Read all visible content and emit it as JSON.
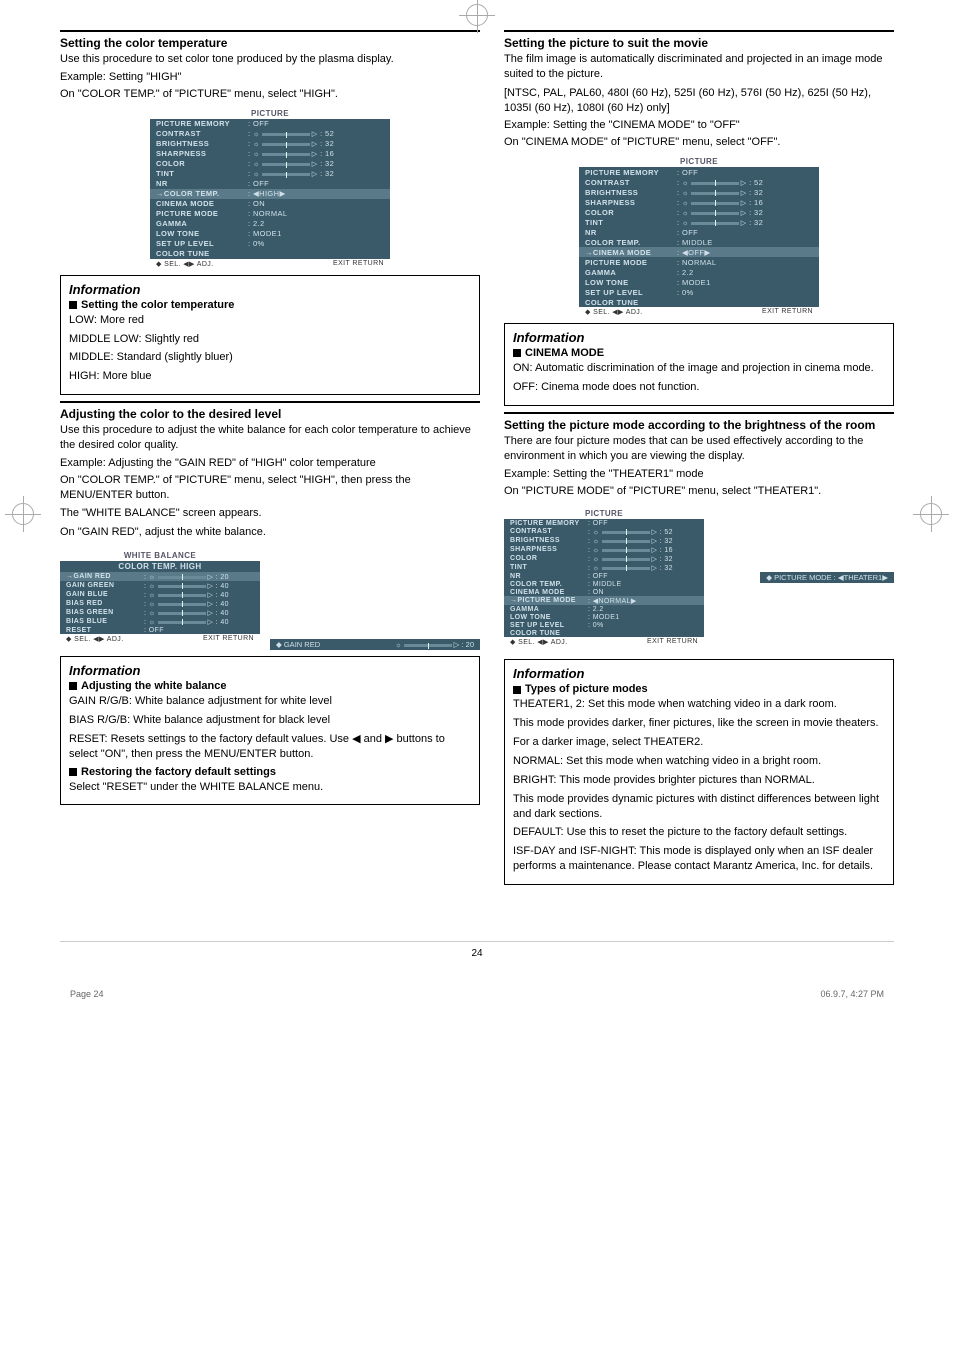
{
  "left": {
    "s1": {
      "title": "Setting the color temperature",
      "body": "Use this procedure to set color tone produced by the plasma display.",
      "example": "Example: Setting \"HIGH\"",
      "instr": "On \"COLOR TEMP.\" of \"PICTURE\" menu, select \"HIGH\"."
    },
    "menu1": {
      "title": "PICTURE",
      "rows": [
        {
          "l": "PICTURE MEMORY",
          "v": ": OFF",
          "t": "text"
        },
        {
          "l": "CONTRAST",
          "v": "52",
          "t": "slider"
        },
        {
          "l": "BRIGHTNESS",
          "v": "32",
          "t": "slider"
        },
        {
          "l": "SHARPNESS",
          "v": "16",
          "t": "slider"
        },
        {
          "l": "COLOR",
          "v": "32",
          "t": "slider"
        },
        {
          "l": "TINT",
          "v": "32",
          "t": "slider"
        },
        {
          "l": "NR",
          "v": ": OFF",
          "t": "text"
        },
        {
          "l": "COLOR TEMP.",
          "v": ": ◀HIGH▶",
          "t": "text",
          "sel": true,
          "hl": true
        },
        {
          "l": "CINEMA MODE",
          "v": ": ON",
          "t": "text"
        },
        {
          "l": "PICTURE MODE",
          "v": ": NORMAL",
          "t": "text"
        },
        {
          "l": "GAMMA",
          "v": ": 2.2",
          "t": "text"
        },
        {
          "l": "LOW TONE",
          "v": ": MODE1",
          "t": "text"
        },
        {
          "l": "SET UP LEVEL",
          "v": ": 0%",
          "t": "text"
        },
        {
          "l": "COLOR TUNE",
          "v": "",
          "t": "text"
        }
      ],
      "footer": {
        "l": "◆ SEL.    ◀▶ ADJ.",
        "r": "EXIT RETURN"
      }
    },
    "info1": {
      "title": "Information",
      "sub": "Setting the color temperature",
      "l1": "LOW: More red",
      "l2": "MIDDLE LOW: Slightly red",
      "l3": "MIDDLE: Standard (slightly bluer)",
      "l4": "HIGH: More blue"
    },
    "s2": {
      "title": "Adjusting the color to the desired level",
      "body": "Use this procedure to adjust the white balance for each color temperature to achieve the desired color quality.",
      "example": "Example: Adjusting the \"GAIN RED\" of \"HIGH\" color temperature",
      "i1": "On \"COLOR TEMP.\" of \"PICTURE\" menu, select \"HIGH\", then press the  MENU/ENTER button.",
      "i2": "The \"WHITE BALANCE\" screen appears.",
      "i3": "On \"GAIN RED\", adjust the white balance."
    },
    "menu2": {
      "title1": "WHITE BALANCE",
      "title2": "COLOR TEMP. HIGH",
      "rows": [
        {
          "l": "GAIN RED",
          "v": "20",
          "sel": true,
          "hl": true
        },
        {
          "l": "GAIN GREEN",
          "v": "40"
        },
        {
          "l": "GAIN BLUE",
          "v": "40"
        },
        {
          "l": "BIAS RED",
          "v": "40"
        },
        {
          "l": "BIAS GREEN",
          "v": "40"
        },
        {
          "l": "BIAS BLUE",
          "v": "40"
        },
        {
          "l": "RESET",
          "v": ": OFF",
          "t": "text"
        }
      ],
      "footer": {
        "l": "◆ SEL.    ◀▶ ADJ.",
        "r": "EXIT RETURN"
      },
      "strip": {
        "l": "◆ GAIN RED",
        "r": "▷ : 20"
      }
    },
    "info2": {
      "title": "Information",
      "sub1": "Adjusting the white balance",
      "l1": "GAIN R/G/B: White balance adjustment for white level",
      "l2": "BIAS R/G/B: White balance adjustment for black level",
      "l3": "RESET: Resets settings to the factory default values. Use  ◀ and ▶ buttons to select \"ON\", then press the MENU/ENTER button.",
      "sub2": "Restoring the factory default settings",
      "l4": "Select \"RESET\" under the WHITE BALANCE menu."
    }
  },
  "right": {
    "s1": {
      "title": "Setting the picture to suit the movie",
      "body": "The film image is automatically discriminated and projected in an image mode suited to the picture.",
      "note": "[NTSC, PAL, PAL60, 480I (60 Hz), 525I (60 Hz), 576I (50 Hz), 625I (50 Hz), 1035I (60 Hz), 1080I (60 Hz) only]",
      "example": "Example: Setting the \"CINEMA MODE\" to \"OFF\"",
      "instr": "On \"CINEMA MODE\" of \"PICTURE\" menu, select \"OFF\"."
    },
    "menu1": {
      "title": "PICTURE",
      "rows": [
        {
          "l": "PICTURE MEMORY",
          "v": ": OFF",
          "t": "text"
        },
        {
          "l": "CONTRAST",
          "v": "52",
          "t": "slider"
        },
        {
          "l": "BRIGHTNESS",
          "v": "32",
          "t": "slider"
        },
        {
          "l": "SHARPNESS",
          "v": "16",
          "t": "slider"
        },
        {
          "l": "COLOR",
          "v": "32",
          "t": "slider"
        },
        {
          "l": "TINT",
          "v": "32",
          "t": "slider"
        },
        {
          "l": "NR",
          "v": ": OFF",
          "t": "text"
        },
        {
          "l": "COLOR TEMP.",
          "v": ": MIDDLE",
          "t": "text"
        },
        {
          "l": "CINEMA MODE",
          "v": ": ◀OFF▶",
          "t": "text",
          "sel": true,
          "hl": true
        },
        {
          "l": "PICTURE MODE",
          "v": ": NORMAL",
          "t": "text"
        },
        {
          "l": "GAMMA",
          "v": ": 2.2",
          "t": "text"
        },
        {
          "l": "LOW TONE",
          "v": ": MODE1",
          "t": "text"
        },
        {
          "l": "SET UP LEVEL",
          "v": ": 0%",
          "t": "text"
        },
        {
          "l": "COLOR TUNE",
          "v": "",
          "t": "text"
        }
      ],
      "footer": {
        "l": "◆ SEL.    ◀▶ ADJ.",
        "r": "EXIT RETURN"
      }
    },
    "info1": {
      "title": "Information",
      "sub": "CINEMA MODE",
      "l1": "ON: Automatic discrimination of the image and projection in cinema mode.",
      "l2": "OFF: Cinema mode does not function."
    },
    "s2": {
      "title": "Setting the picture mode according to the brightness of the room",
      "body": "There are four picture modes that can be used effectively according to the environment in which you are viewing the display.",
      "example": "Example: Setting the \"THEATER1\" mode",
      "instr": "On \"PICTURE MODE\" of \"PICTURE\" menu, select \"THEATER1\"."
    },
    "menu2": {
      "title": "PICTURE",
      "rows": [
        {
          "l": "PICTURE MEMORY",
          "v": ": OFF",
          "t": "text"
        },
        {
          "l": "CONTRAST",
          "v": "52",
          "t": "slider"
        },
        {
          "l": "BRIGHTNESS",
          "v": "32",
          "t": "slider"
        },
        {
          "l": "SHARPNESS",
          "v": "16",
          "t": "slider"
        },
        {
          "l": "COLOR",
          "v": "32",
          "t": "slider"
        },
        {
          "l": "TINT",
          "v": "32",
          "t": "slider"
        },
        {
          "l": "NR",
          "v": ": OFF",
          "t": "text"
        },
        {
          "l": "COLOR TEMP.",
          "v": ": MIDDLE",
          "t": "text"
        },
        {
          "l": "CINEMA MODE",
          "v": ": ON",
          "t": "text"
        },
        {
          "l": "PICTURE MODE",
          "v": ": ◀NORMAL▶",
          "t": "text",
          "sel": true,
          "hl": true
        },
        {
          "l": "GAMMA",
          "v": ": 2.2",
          "t": "text"
        },
        {
          "l": "LOW TONE",
          "v": ": MODE1",
          "t": "text"
        },
        {
          "l": "SET UP LEVEL",
          "v": ": 0%",
          "t": "text"
        },
        {
          "l": "COLOR TUNE",
          "v": "",
          "t": "text"
        }
      ],
      "footer": {
        "l": "◆ SEL.    ◀▶ ADJ.",
        "r": "EXIT RETURN"
      },
      "strip": "◆ PICTURE MODE   : ◀THEATER1▶"
    },
    "info2": {
      "title": "Information",
      "sub": "Types of picture modes",
      "p1": "THEATER1, 2: Set this mode when watching video in a dark room.",
      "p2": "This mode provides darker, finer pictures, like the screen in movie theaters.",
      "p3": "For a darker image, select THEATER2.",
      "p4": "NORMAL: Set this mode when watching video in a bright room.",
      "p5": "BRIGHT: This mode provides brighter pictures than NORMAL.",
      "p6": "This mode provides dynamic pictures with distinct differences between light and dark sections.",
      "p7": "DEFAULT: Use this to reset the picture to the factory default settings.",
      "p8": "ISF-DAY and ISF-NIGHT: This mode is displayed only when an ISF dealer performs a maintenance. Please contact Marantz America, Inc. for details."
    }
  },
  "pagenum": "24",
  "meta": {
    "l": "Page 24",
    "r": "06.9.7, 4:27 PM"
  }
}
